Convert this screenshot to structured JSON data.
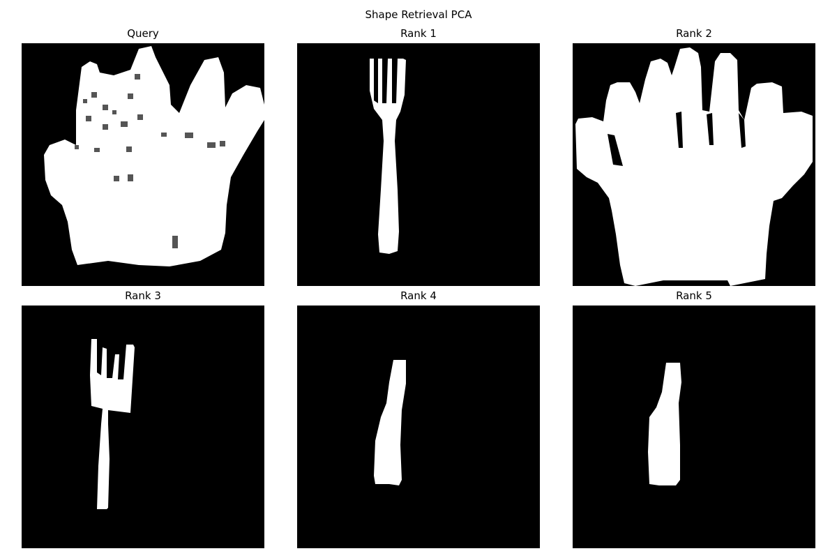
{
  "figure": {
    "title": "Shape Retrieval PCA"
  },
  "panels": [
    {
      "title": "Query",
      "shape": "crown-silhouette"
    },
    {
      "title": "Rank 1",
      "shape": "fork-silhouette"
    },
    {
      "title": "Rank 2",
      "shape": "hand-silhouette"
    },
    {
      "title": "Rank 3",
      "shape": "fork-silhouette"
    },
    {
      "title": "Rank 4",
      "shape": "bottle-silhouette"
    },
    {
      "title": "Rank 5",
      "shape": "bottle-silhouette"
    }
  ],
  "colors": {
    "background": "#000000",
    "shape": "#ffffff"
  }
}
